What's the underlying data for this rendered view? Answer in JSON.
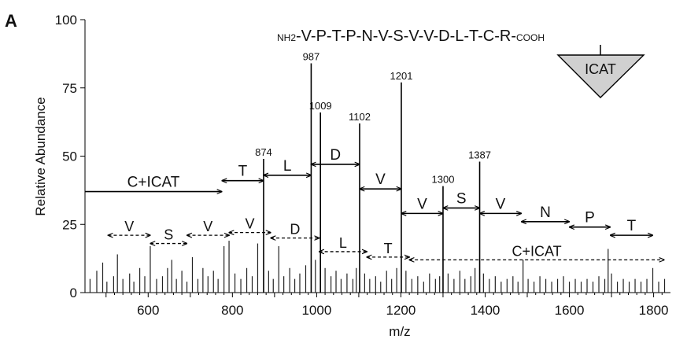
{
  "panel_label": "A",
  "peptide": {
    "n_term": "NH2",
    "residues": [
      "V",
      "P",
      "T",
      "P",
      "N",
      "V",
      "S",
      "V",
      "V",
      "D",
      "L",
      "T",
      "C",
      "R"
    ],
    "c_term": "COOH",
    "tag_label": "ICAT",
    "tag_color": "#d0d0d0"
  },
  "chart_data": {
    "type": "bar",
    "xlabel": "m/z",
    "ylabel": "Relative Abundance",
    "xlim": [
      450,
      1840
    ],
    "ylim": [
      0,
      100
    ],
    "x_ticks": [
      600,
      800,
      1000,
      1200,
      1400,
      1600,
      1800
    ],
    "y_ticks": [
      0,
      25,
      50,
      75,
      100
    ],
    "labeled_peaks": [
      {
        "mz": 874,
        "intensity": 49,
        "label": "874"
      },
      {
        "mz": 987,
        "intensity": 84,
        "label": "987"
      },
      {
        "mz": 1009,
        "intensity": 66,
        "label": "1009"
      },
      {
        "mz": 1102,
        "intensity": 62,
        "label": "1102"
      },
      {
        "mz": 1201,
        "intensity": 77,
        "label": "1201"
      },
      {
        "mz": 1300,
        "intensity": 39,
        "label": "1300"
      },
      {
        "mz": 1387,
        "intensity": 48,
        "label": "1387"
      }
    ],
    "minor_peaks": [
      [
        462,
        5
      ],
      [
        478,
        8
      ],
      [
        492,
        11
      ],
      [
        502,
        4
      ],
      [
        518,
        6
      ],
      [
        527,
        14
      ],
      [
        540,
        5
      ],
      [
        556,
        7
      ],
      [
        566,
        4
      ],
      [
        580,
        9
      ],
      [
        592,
        6
      ],
      [
        605,
        17
      ],
      [
        620,
        5
      ],
      [
        634,
        6
      ],
      [
        646,
        9
      ],
      [
        656,
        12
      ],
      [
        667,
        5
      ],
      [
        680,
        8
      ],
      [
        692,
        4
      ],
      [
        705,
        13
      ],
      [
        718,
        5
      ],
      [
        730,
        9
      ],
      [
        742,
        6
      ],
      [
        755,
        8
      ],
      [
        766,
        5
      ],
      [
        780,
        17
      ],
      [
        792,
        19
      ],
      [
        806,
        7
      ],
      [
        820,
        5
      ],
      [
        834,
        9
      ],
      [
        847,
        6
      ],
      [
        860,
        18
      ],
      [
        886,
        8
      ],
      [
        897,
        5
      ],
      [
        910,
        17
      ],
      [
        922,
        6
      ],
      [
        936,
        9
      ],
      [
        948,
        5
      ],
      [
        960,
        7
      ],
      [
        974,
        10
      ],
      [
        997,
        12
      ],
      [
        1020,
        9
      ],
      [
        1034,
        6
      ],
      [
        1046,
        8
      ],
      [
        1058,
        5
      ],
      [
        1072,
        7
      ],
      [
        1086,
        5
      ],
      [
        1094,
        9
      ],
      [
        1114,
        7
      ],
      [
        1126,
        5
      ],
      [
        1140,
        6
      ],
      [
        1152,
        4
      ],
      [
        1166,
        8
      ],
      [
        1178,
        5
      ],
      [
        1190,
        9
      ],
      [
        1212,
        8
      ],
      [
        1226,
        5
      ],
      [
        1240,
        6
      ],
      [
        1254,
        4
      ],
      [
        1268,
        7
      ],
      [
        1282,
        5
      ],
      [
        1292,
        6
      ],
      [
        1312,
        7
      ],
      [
        1326,
        5
      ],
      [
        1340,
        8
      ],
      [
        1352,
        5
      ],
      [
        1366,
        6
      ],
      [
        1376,
        9
      ],
      [
        1396,
        7
      ],
      [
        1410,
        5
      ],
      [
        1424,
        6
      ],
      [
        1438,
        4
      ],
      [
        1452,
        5
      ],
      [
        1466,
        6
      ],
      [
        1478,
        4
      ],
      [
        1490,
        12
      ],
      [
        1502,
        5
      ],
      [
        1516,
        4
      ],
      [
        1530,
        6
      ],
      [
        1544,
        5
      ],
      [
        1558,
        4
      ],
      [
        1572,
        5
      ],
      [
        1586,
        6
      ],
      [
        1600,
        4
      ],
      [
        1614,
        5
      ],
      [
        1628,
        4
      ],
      [
        1642,
        5
      ],
      [
        1656,
        4
      ],
      [
        1670,
        6
      ],
      [
        1684,
        5
      ],
      [
        1692,
        16
      ],
      [
        1700,
        7
      ],
      [
        1714,
        4
      ],
      [
        1728,
        5
      ],
      [
        1742,
        4
      ],
      [
        1756,
        5
      ],
      [
        1770,
        4
      ],
      [
        1784,
        5
      ],
      [
        1798,
        9
      ],
      [
        1812,
        4
      ],
      [
        1826,
        5
      ]
    ],
    "y_ion_ladder": [
      {
        "label": "C+ICAT",
        "from": 450,
        "to": 775,
        "y": 37,
        "arrow": "right"
      },
      {
        "label": "T",
        "from": 775,
        "to": 874,
        "y": 41,
        "arrow": "both"
      },
      {
        "label": "L",
        "from": 874,
        "to": 987,
        "y": 43,
        "arrow": "both"
      },
      {
        "label": "D",
        "from": 987,
        "to": 1102,
        "y": 47,
        "arrow": "both"
      },
      {
        "label": "V",
        "from": 1102,
        "to": 1201,
        "y": 38,
        "arrow": "both"
      },
      {
        "label": "V",
        "from": 1201,
        "to": 1300,
        "y": 29,
        "arrow": "both"
      },
      {
        "label": "S",
        "from": 1300,
        "to": 1387,
        "y": 31,
        "arrow": "both"
      },
      {
        "label": "V",
        "from": 1387,
        "to": 1486,
        "y": 29,
        "arrow": "both"
      },
      {
        "label": "N",
        "from": 1486,
        "to": 1600,
        "y": 26,
        "arrow": "both"
      },
      {
        "label": "P",
        "from": 1600,
        "to": 1697,
        "y": 24,
        "arrow": "both"
      },
      {
        "label": "T",
        "from": 1697,
        "to": 1798,
        "y": 21,
        "arrow": "both"
      }
    ],
    "b_ion_ladder": [
      {
        "label": "V",
        "from": 505,
        "to": 605,
        "y": 21
      },
      {
        "label": "S",
        "from": 605,
        "to": 692,
        "y": 18
      },
      {
        "label": "V",
        "from": 692,
        "to": 792,
        "y": 21
      },
      {
        "label": "V",
        "from": 792,
        "to": 891,
        "y": 22
      },
      {
        "label": "D",
        "from": 891,
        "to": 1006,
        "y": 20
      },
      {
        "label": "L",
        "from": 1006,
        "to": 1119,
        "y": 15
      },
      {
        "label": "T",
        "from": 1119,
        "to": 1220,
        "y": 13
      },
      {
        "label": "C+ICAT",
        "from": 1220,
        "to": 1825,
        "y": 12
      }
    ]
  }
}
